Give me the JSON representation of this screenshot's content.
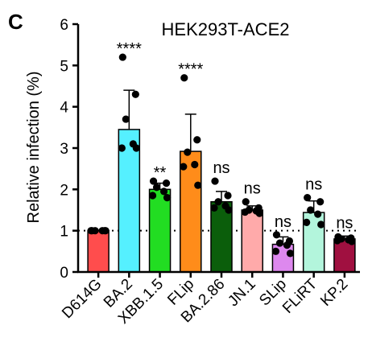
{
  "panel_letter": "C",
  "chart_data": {
    "type": "bar",
    "title": "HEK293T-ACE2",
    "xlabel": "",
    "ylabel": "Relative infection (%)",
    "ylim": [
      0,
      6
    ],
    "yticks": [
      "0",
      "1",
      "2",
      "3",
      "4",
      "5",
      "6"
    ],
    "reference_line": 1,
    "reference_line_style": "dotted",
    "grid": false,
    "categories": [
      "D614G",
      "BA.2",
      "XBB.1.5",
      "FLip",
      "BA.2.86",
      "JN.1",
      "SLip",
      "FLiRT",
      "KP.2"
    ],
    "values": [
      1.0,
      3.45,
      2.0,
      2.92,
      1.7,
      1.5,
      0.67,
      1.44,
      0.8
    ],
    "errors": [
      0.02,
      0.95,
      0.15,
      0.9,
      0.25,
      0.1,
      0.18,
      0.28,
      0.07
    ],
    "colors": [
      "#ff4d4d",
      "#55f0ff",
      "#22dd22",
      "#ff8c1a",
      "#0b5e0b",
      "#ffaaaa",
      "#dd88ee",
      "#b3f5dc",
      "#a01040"
    ],
    "significance": [
      "",
      "****",
      "**",
      "****",
      "ns",
      "ns",
      "ns",
      "ns",
      "ns"
    ],
    "points": [
      [
        1.0,
        1.0,
        1.0,
        1.0,
        1.0,
        1.0
      ],
      [
        5.2,
        4.3,
        3.7,
        3.1,
        3.0,
        3.0
      ],
      [
        2.2,
        2.15,
        2.05,
        1.95,
        1.85,
        1.8
      ],
      [
        4.7,
        3.2,
        2.9,
        2.6,
        2.55,
        2.1
      ],
      [
        2.2,
        1.85,
        1.7,
        1.6,
        1.55,
        1.5
      ],
      [
        1.7,
        1.55,
        1.5,
        1.48,
        1.45,
        1.42
      ],
      [
        0.9,
        0.75,
        0.7,
        0.65,
        0.5,
        0.45
      ],
      [
        1.8,
        1.7,
        1.5,
        1.4,
        1.2,
        1.15
      ],
      [
        0.85,
        0.82,
        0.8,
        0.78,
        0.76,
        0.74
      ]
    ]
  }
}
